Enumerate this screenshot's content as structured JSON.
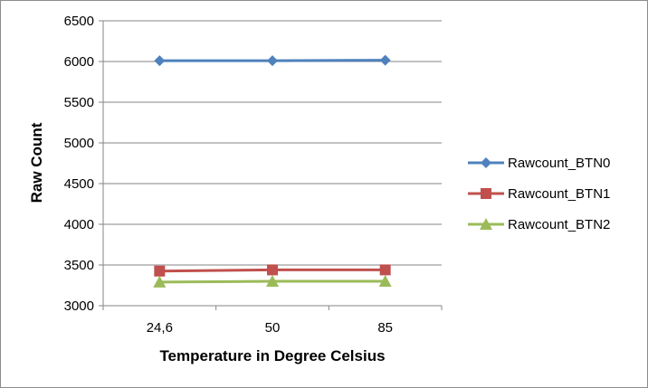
{
  "chart_data": {
    "type": "line",
    "categories": [
      "24,6",
      "50",
      "85"
    ],
    "series": [
      {
        "name": "Rawcount_BTN0",
        "values": [
          6010,
          6010,
          6015
        ],
        "color": "#4f81bd",
        "marker": "diamond"
      },
      {
        "name": "Rawcount_BTN1",
        "values": [
          3425,
          3440,
          3440
        ],
        "color": "#c0504d",
        "marker": "square"
      },
      {
        "name": "Rawcount_BTN2",
        "values": [
          3290,
          3300,
          3300
        ],
        "color": "#9bbb59",
        "marker": "triangle"
      }
    ],
    "title": "",
    "xlabel": "Temperature in Degree Celsius",
    "ylabel": "Raw Count",
    "ylim": [
      3000,
      6500
    ],
    "yticks": [
      3000,
      3500,
      4000,
      4500,
      5000,
      5500,
      6000,
      6500
    ],
    "grid": true,
    "legend_position": "right"
  }
}
